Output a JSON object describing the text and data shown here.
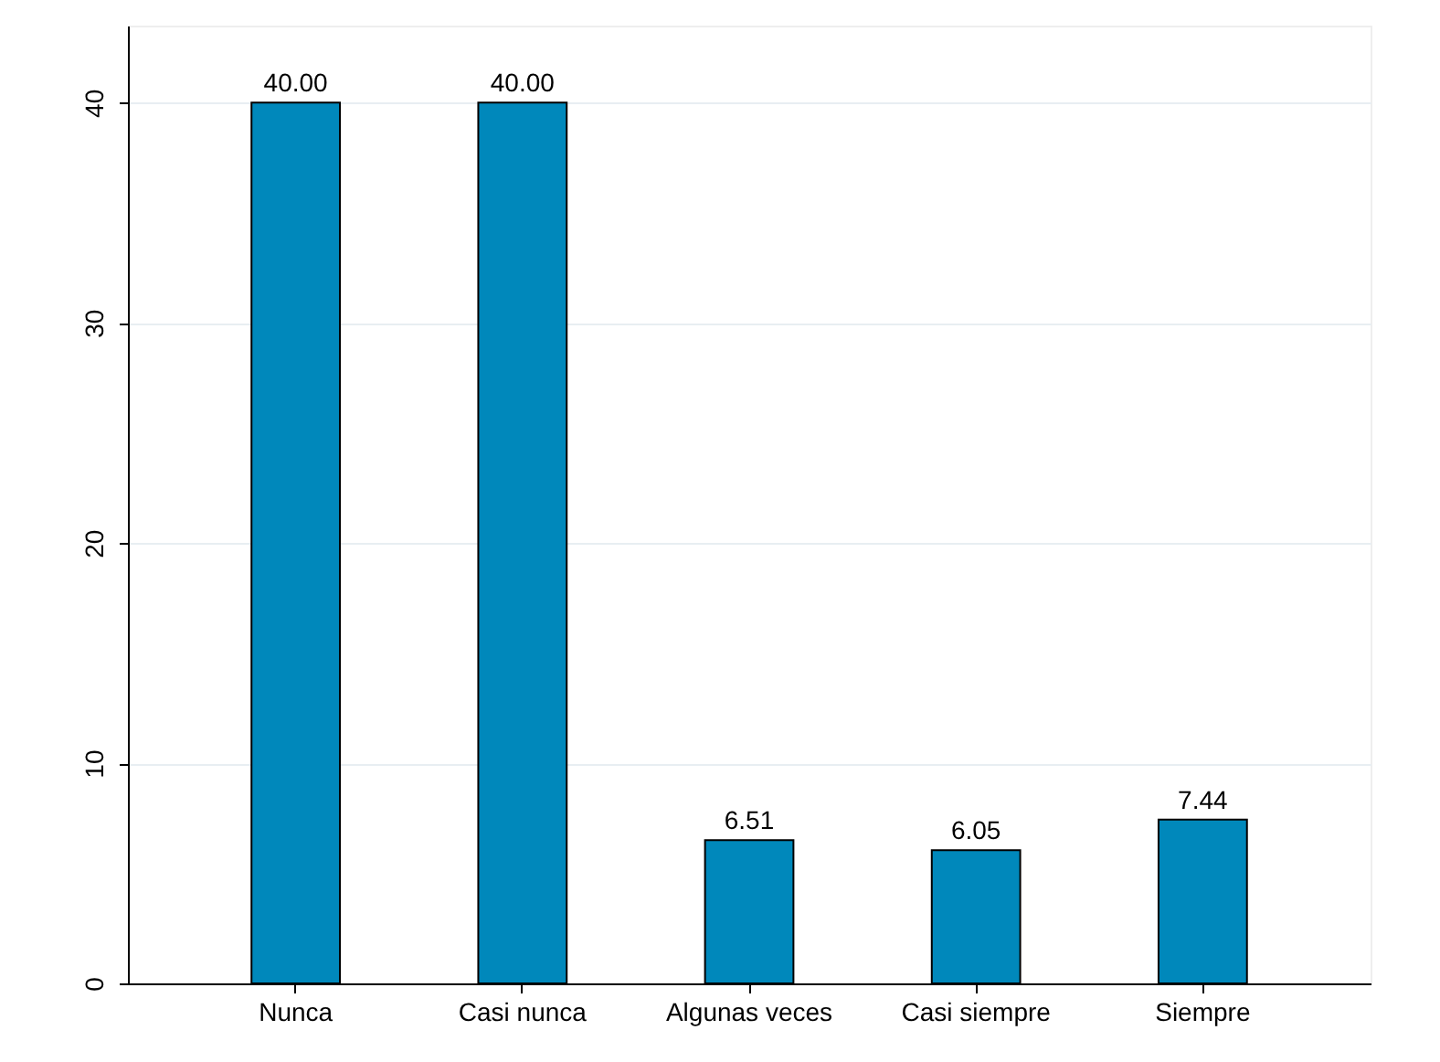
{
  "chart_data": {
    "type": "bar",
    "categories": [
      "Nunca",
      "Casi nunca",
      "Algunas veces",
      "Casi siempre",
      "Siempre"
    ],
    "values": [
      40.0,
      40.0,
      6.51,
      6.05,
      7.44
    ],
    "value_labels": [
      "40.00",
      "40.00",
      "6.51",
      "6.05",
      "7.44"
    ],
    "color": "#0088bb",
    "ylim": [
      0,
      43.5
    ],
    "yticks": [
      0,
      10,
      20,
      30,
      40
    ],
    "grid": "y"
  }
}
